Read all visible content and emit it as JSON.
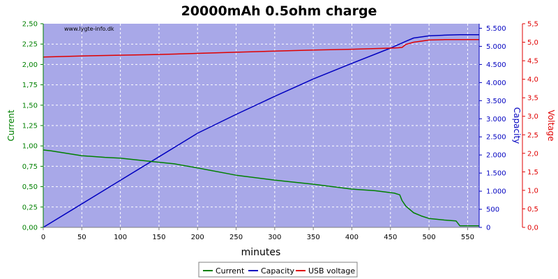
{
  "chart_data": {
    "type": "line",
    "title": "20000mAh 0.5ohm charge",
    "watermark": "www.lygte-info.dk",
    "xlabel": "minutes",
    "xlim": [
      0,
      565
    ],
    "xticks": [
      "0",
      "50",
      "100",
      "150",
      "200",
      "250",
      "300",
      "350",
      "400",
      "450",
      "500",
      "550"
    ],
    "axes": {
      "left": {
        "label": "Current",
        "ylim": [
          0,
          2.5
        ],
        "color": "#008000",
        "ticks": [
          "0,00",
          "0,25",
          "0,50",
          "0,75",
          "1,00",
          "1,25",
          "1,50",
          "1,75",
          "2,00",
          "2,25",
          "2,50"
        ]
      },
      "right1": {
        "label": "Capacity",
        "ylim": [
          0,
          5625
        ],
        "color": "#0000c0",
        "ticks": [
          "0",
          "500",
          "1.000",
          "1.500",
          "2.000",
          "2.500",
          "3.000",
          "3.500",
          "4.000",
          "4.500",
          "5.000",
          "5.500"
        ]
      },
      "right2": {
        "label": "Voltage",
        "ylim": [
          0,
          5.5
        ],
        "color": "#e00000",
        "ticks": [
          "0,0",
          "0,5",
          "1,0",
          "1,5",
          "2,0",
          "2,5",
          "3,0",
          "3,5",
          "4,0",
          "4,5",
          "5,0",
          "5,5"
        ]
      }
    },
    "grid": true,
    "legend_position": "bottom-center",
    "colors": {
      "plot_bg": "#a8a8e8",
      "grid": "#ffffff"
    },
    "series": [
      {
        "name": "Current",
        "axis": "left",
        "color": "#008000",
        "x": [
          0,
          10,
          30,
          50,
          80,
          100,
          120,
          150,
          170,
          200,
          250,
          300,
          350,
          400,
          430,
          455,
          462,
          465,
          470,
          480,
          490,
          500,
          520,
          535,
          540,
          565
        ],
        "y": [
          0.95,
          0.94,
          0.91,
          0.88,
          0.86,
          0.85,
          0.83,
          0.8,
          0.78,
          0.73,
          0.64,
          0.58,
          0.53,
          0.47,
          0.45,
          0.42,
          0.4,
          0.33,
          0.26,
          0.18,
          0.14,
          0.11,
          0.09,
          0.08,
          0.02,
          0.02
        ]
      },
      {
        "name": "Capacity",
        "axis": "right1",
        "color": "#0000c0",
        "x": [
          0,
          50,
          100,
          150,
          200,
          250,
          300,
          350,
          400,
          450,
          470,
          480,
          500,
          520,
          540,
          565
        ],
        "y": [
          0,
          650,
          1300,
          1950,
          2600,
          3120,
          3620,
          4100,
          4530,
          4950,
          5140,
          5230,
          5290,
          5310,
          5320,
          5320
        ]
      },
      {
        "name": "USB voltage",
        "axis": "right2",
        "color": "#e00000",
        "x": [
          0,
          50,
          100,
          150,
          200,
          250,
          300,
          350,
          400,
          450,
          460,
          465,
          470,
          480,
          490,
          500,
          520,
          540,
          565
        ],
        "y": [
          4.6,
          4.63,
          4.65,
          4.67,
          4.7,
          4.73,
          4.76,
          4.79,
          4.81,
          4.84,
          4.85,
          4.86,
          4.94,
          5.0,
          5.03,
          5.06,
          5.07,
          5.07,
          5.07
        ]
      }
    ]
  }
}
